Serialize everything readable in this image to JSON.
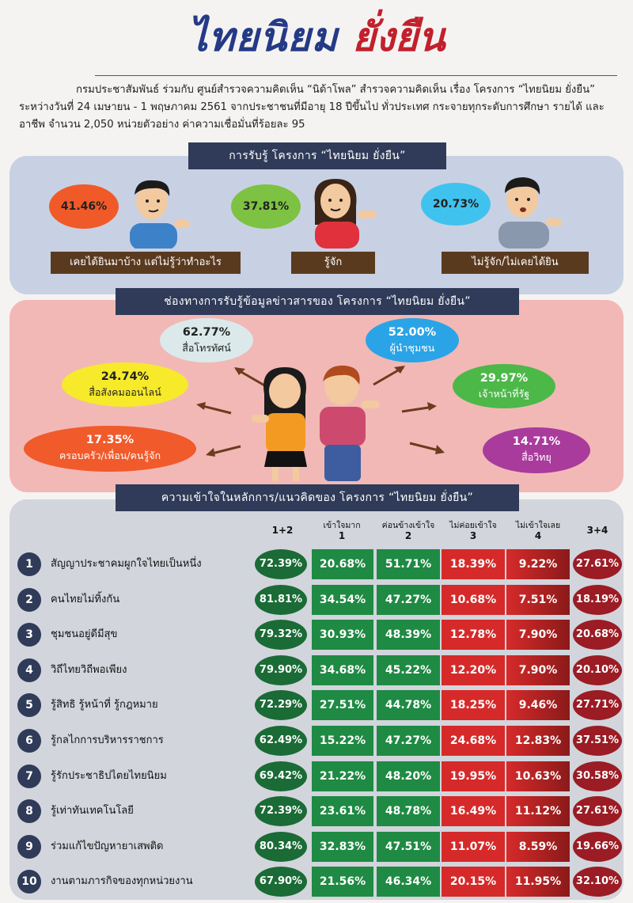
{
  "title": {
    "part1": "ไทยนิยม",
    "part2": "ยั่งยืน"
  },
  "intro": "กรมประชาสัมพันธ์ ร่วมกับ ศูนย์สำรวจความคิดเห็น “นิด้าโพล” สำรวจความคิดเห็น เรื่อง โครงการ “ไทยนิยม ยั่งยืน” ระหว่างวันที่ 24 เมษายน - 1 พฤษภาคม 2561 จากประชาชนที่มีอายุ 18 ปีขึ้นไป ทั่วประเทศ กระจายทุกระดับการศึกษา รายได้ และอาชีพ จำนวน 2,050 หน่วยตัวอย่าง ค่าความเชื่อมั่นที่ร้อยละ 95",
  "awareness": {
    "header": "การรับรู้ โครงการ “ไทยนิยม ยั่งยืน”",
    "items": [
      {
        "value": "41.46%",
        "label": "เคยได้ยินมาบ้าง แต่ไม่รู้ว่าทำอะไร",
        "color": "#f05a28"
      },
      {
        "value": "37.81%",
        "label": "รู้จัก",
        "color": "#7dc242"
      },
      {
        "value": "20.73%",
        "label": "ไม่รู้จัก/ไม่เคยได้ยิน",
        "color": "#3fc3ee"
      }
    ]
  },
  "channels": {
    "header": "ช่องทางการรับรู้ข้อมูลข่าวสารของ โครงการ “ไทยนิยม ยั่งยืน”",
    "items": [
      {
        "value": "62.77%",
        "label": "สื่อโทรทัศน์",
        "color": "#dbe9ea",
        "text": "#222"
      },
      {
        "value": "52.00%",
        "label": "ผู้นำชุมชน",
        "color": "#2aa4e6",
        "text": "#fff"
      },
      {
        "value": "24.74%",
        "label": "สื่อสังคมออนไลน์",
        "color": "#f6ea2a",
        "text": "#222"
      },
      {
        "value": "29.97%",
        "label": "เจ้าหน้าที่รัฐ",
        "color": "#4cb848",
        "text": "#fff"
      },
      {
        "value": "17.35%",
        "label": "ครอบครัว/เพื่อน/คนรู้จัก",
        "color": "#f15a2a",
        "text": "#fff"
      },
      {
        "value": "14.71%",
        "label": "สื่อวิทยุ",
        "color": "#a93b9c",
        "text": "#fff"
      }
    ]
  },
  "understanding": {
    "header": "ความเข้าใจในหลักการ/แนวคิดของ โครงการ “ไทยนิยม ยั่งยืน”",
    "columns": {
      "sum12": "1+2",
      "c1": "เข้าใจมาก",
      "n1": "1",
      "c2": "ค่อนข้างเข้าใจ",
      "n2": "2",
      "c3": "ไม่ค่อยเข้าใจ",
      "n3": "3",
      "c4": "ไม่เข้าใจเลย",
      "n4": "4",
      "sum34": "3+4"
    },
    "rows": [
      {
        "num": "1",
        "label": "สัญญาประชาคมผูกใจไทยเป็นหนึ่ง",
        "s12": "72.39%",
        "c1": "20.68%",
        "c2": "51.71%",
        "c3": "18.39%",
        "c4": "9.22%",
        "s34": "27.61%"
      },
      {
        "num": "2",
        "label": "คนไทยไม่ทิ้งกัน",
        "s12": "81.81%",
        "c1": "34.54%",
        "c2": "47.27%",
        "c3": "10.68%",
        "c4": "7.51%",
        "s34": "18.19%"
      },
      {
        "num": "3",
        "label": "ชุมชนอยู่ดีมีสุข",
        "s12": "79.32%",
        "c1": "30.93%",
        "c2": "48.39%",
        "c3": "12.78%",
        "c4": "7.90%",
        "s34": "20.68%"
      },
      {
        "num": "4",
        "label": "วิถีไทยวิถีพอเพียง",
        "s12": "79.90%",
        "c1": "34.68%",
        "c2": "45.22%",
        "c3": "12.20%",
        "c4": "7.90%",
        "s34": "20.10%"
      },
      {
        "num": "5",
        "label": "รู้สิทธิ รู้หน้าที่ รู้กฎหมาย",
        "s12": "72.29%",
        "c1": "27.51%",
        "c2": "44.78%",
        "c3": "18.25%",
        "c4": "9.46%",
        "s34": "27.71%"
      },
      {
        "num": "6",
        "label": "รู้กลไกการบริหารราชการ",
        "s12": "62.49%",
        "c1": "15.22%",
        "c2": "47.27%",
        "c3": "24.68%",
        "c4": "12.83%",
        "s34": "37.51%"
      },
      {
        "num": "7",
        "label": "รู้รักประชาธิปไตยไทยนิยม",
        "s12": "69.42%",
        "c1": "21.22%",
        "c2": "48.20%",
        "c3": "19.95%",
        "c4": "10.63%",
        "s34": "30.58%"
      },
      {
        "num": "8",
        "label": "รู้เท่าทันเทคโนโลยี",
        "s12": "72.39%",
        "c1": "23.61%",
        "c2": "48.78%",
        "c3": "16.49%",
        "c4": "11.12%",
        "s34": "27.61%"
      },
      {
        "num": "9",
        "label": "ร่วมแก้ไขปัญหายาเสพติด",
        "s12": "80.34%",
        "c1": "32.83%",
        "c2": "47.51%",
        "c3": "11.07%",
        "c4": "8.59%",
        "s34": "19.66%"
      },
      {
        "num": "10",
        "label": "งานตามภารกิจของทุกหน่วยงาน",
        "s12": "67.90%",
        "c1": "21.56%",
        "c2": "46.34%",
        "c3": "20.15%",
        "c4": "11.95%",
        "s34": "32.10%"
      }
    ]
  }
}
